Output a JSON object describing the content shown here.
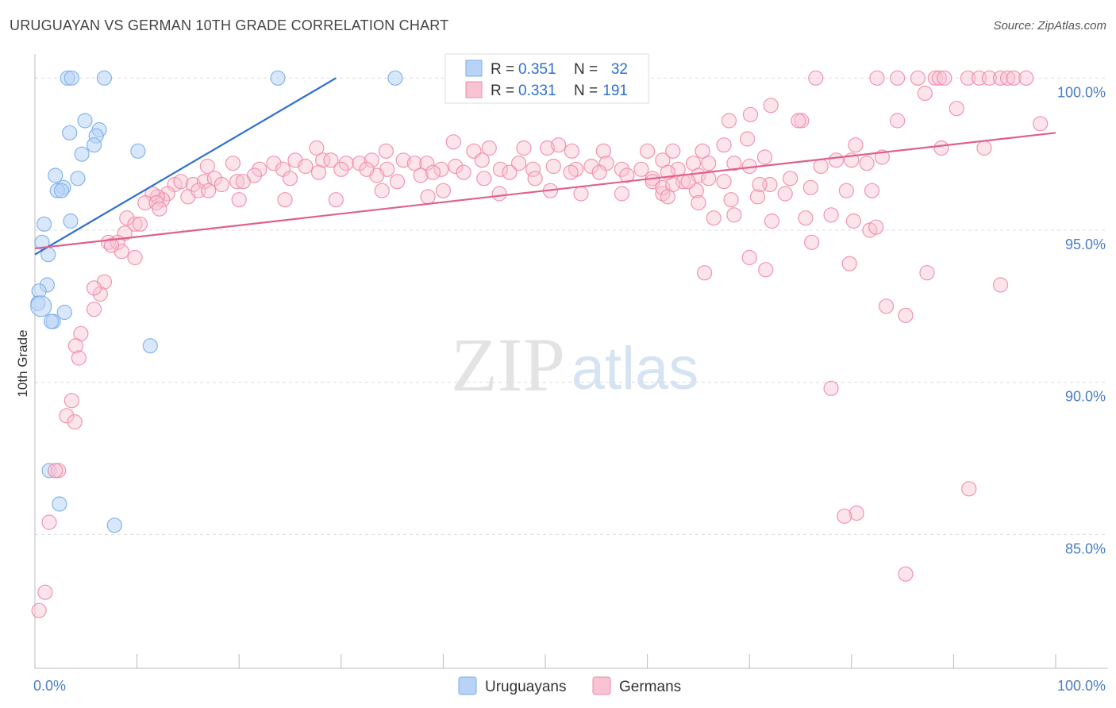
{
  "title": "URUGUAYAN VS GERMAN 10TH GRADE CORRELATION CHART",
  "source": "Source: ZipAtlas.com",
  "watermark": {
    "zip": "ZIP",
    "atlas": "atlas"
  },
  "chart_data": {
    "type": "scatter",
    "xlabel": "",
    "ylabel": "10th Grade",
    "xlim": [
      0,
      100
    ],
    "ylim": [
      80.6,
      101.0
    ],
    "x_tick_labels": [
      {
        "value": 0,
        "label": "0.0%"
      },
      {
        "value": 100,
        "label": "100.0%"
      }
    ],
    "y_ticks": [
      {
        "value": 100,
        "label": "100.0%"
      },
      {
        "value": 95,
        "label": "95.0%"
      },
      {
        "value": 90,
        "label": "90.0%"
      },
      {
        "value": 85,
        "label": "85.0%"
      }
    ],
    "grid": "horizontal dashed",
    "legend": {
      "placement": "top-center",
      "rows": [
        {
          "r_label": "R = ",
          "r_value": "0.351",
          "n_label": "N = ",
          "n_value": "32"
        },
        {
          "r_label": "R = ",
          "r_value": "0.331",
          "n_label": "N = ",
          "n_value": "191"
        }
      ]
    },
    "series": [
      {
        "name": "Uruguayans",
        "color": "#7aaee8",
        "fill": "#b8d3f5",
        "trendline": {
          "x": [
            0,
            29.5
          ],
          "y": [
            94.2,
            100.0
          ],
          "color": "#2f6fd1"
        },
        "points": [
          [
            3.2,
            100
          ],
          [
            3.6,
            100
          ],
          [
            6.8,
            100
          ],
          [
            23.8,
            100
          ],
          [
            35.3,
            100
          ],
          [
            4.9,
            98.6
          ],
          [
            6.3,
            98.3
          ],
          [
            6.0,
            98.1
          ],
          [
            3.4,
            98.2
          ],
          [
            5.8,
            97.8
          ],
          [
            4.6,
            97.5
          ],
          [
            10.1,
            97.6
          ],
          [
            2.0,
            96.8
          ],
          [
            4.2,
            96.7
          ],
          [
            2.8,
            96.4
          ],
          [
            2.2,
            96.3
          ],
          [
            2.6,
            96.3
          ],
          [
            3.5,
            95.3
          ],
          [
            0.9,
            95.2
          ],
          [
            0.7,
            94.6
          ],
          [
            1.3,
            94.2
          ],
          [
            1.2,
            93.2
          ],
          [
            0.4,
            93.0
          ],
          [
            0.3,
            92.6
          ],
          [
            0.6,
            92.5
          ],
          [
            2.9,
            92.3
          ],
          [
            1.8,
            92.0
          ],
          [
            1.6,
            92.0
          ],
          [
            11.3,
            91.2
          ],
          [
            1.4,
            87.1
          ],
          [
            2.4,
            86.0
          ],
          [
            7.8,
            85.3
          ]
        ]
      },
      {
        "name": "Germans",
        "color": "#f08aa8",
        "fill": "#f8c3d3",
        "trendline": {
          "x": [
            0,
            100
          ],
          "y": [
            94.4,
            98.2
          ],
          "color": "#e0608a"
        },
        "points": [
          [
            76.5,
            100
          ],
          [
            82.5,
            100
          ],
          [
            84.5,
            100
          ],
          [
            86.5,
            100
          ],
          [
            88.2,
            100
          ],
          [
            88.6,
            100
          ],
          [
            89.1,
            100
          ],
          [
            91.4,
            100
          ],
          [
            92.5,
            100
          ],
          [
            93.5,
            100
          ],
          [
            94.6,
            100
          ],
          [
            95.3,
            100
          ],
          [
            95.9,
            100
          ],
          [
            97.1,
            100
          ],
          [
            87.2,
            99.5
          ],
          [
            72.1,
            99.1
          ],
          [
            75.1,
            98.6
          ],
          [
            74.8,
            98.6
          ],
          [
            70.1,
            98.8
          ],
          [
            90.3,
            99.0
          ],
          [
            68.0,
            98.6
          ],
          [
            84.5,
            98.6
          ],
          [
            98.5,
            98.5
          ],
          [
            69.8,
            98.0
          ],
          [
            67.5,
            97.8
          ],
          [
            80.4,
            97.8
          ],
          [
            88.8,
            97.7
          ],
          [
            93.0,
            97.7
          ],
          [
            41.0,
            97.9
          ],
          [
            44.5,
            97.7
          ],
          [
            47.9,
            97.7
          ],
          [
            50.2,
            97.7
          ],
          [
            51.3,
            97.8
          ],
          [
            55.7,
            97.6
          ],
          [
            60.0,
            97.6
          ],
          [
            62.5,
            97.6
          ],
          [
            65.4,
            97.6
          ],
          [
            52.6,
            97.6
          ],
          [
            43.0,
            97.6
          ],
          [
            34.4,
            97.6
          ],
          [
            27.6,
            97.7
          ],
          [
            16.9,
            97.1
          ],
          [
            19.4,
            97.2
          ],
          [
            22.0,
            97.0
          ],
          [
            23.4,
            97.2
          ],
          [
            24.3,
            97.0
          ],
          [
            25.5,
            97.3
          ],
          [
            26.5,
            97.1
          ],
          [
            28.2,
            97.3
          ],
          [
            30.5,
            97.2
          ],
          [
            31.8,
            97.2
          ],
          [
            33.0,
            97.3
          ],
          [
            34.5,
            97.0
          ],
          [
            36.1,
            97.3
          ],
          [
            37.2,
            97.2
          ],
          [
            38.4,
            97.2
          ],
          [
            39.8,
            97.0
          ],
          [
            41.2,
            97.1
          ],
          [
            43.8,
            97.3
          ],
          [
            45.6,
            97.0
          ],
          [
            47.4,
            97.2
          ],
          [
            48.8,
            97.0
          ],
          [
            50.8,
            97.1
          ],
          [
            53.0,
            97.0
          ],
          [
            54.5,
            97.1
          ],
          [
            56.0,
            97.2
          ],
          [
            57.5,
            97.0
          ],
          [
            59.4,
            97.0
          ],
          [
            61.5,
            97.3
          ],
          [
            63.0,
            97.0
          ],
          [
            64.5,
            97.2
          ],
          [
            66.0,
            97.2
          ],
          [
            68.5,
            97.2
          ],
          [
            71.5,
            97.4
          ],
          [
            78.5,
            97.3
          ],
          [
            81.5,
            97.2
          ],
          [
            29.0,
            97.3
          ],
          [
            33.5,
            96.8
          ],
          [
            21.5,
            96.8
          ],
          [
            25.0,
            96.7
          ],
          [
            27.8,
            96.9
          ],
          [
            30.0,
            97.0
          ],
          [
            32.5,
            97.0
          ],
          [
            35.5,
            96.6
          ],
          [
            37.8,
            96.8
          ],
          [
            39.0,
            96.9
          ],
          [
            42.0,
            96.9
          ],
          [
            44.0,
            96.7
          ],
          [
            46.5,
            96.9
          ],
          [
            49.0,
            96.7
          ],
          [
            52.5,
            96.9
          ],
          [
            55.3,
            96.9
          ],
          [
            58.0,
            96.8
          ],
          [
            60.5,
            96.7
          ],
          [
            62.0,
            96.9
          ],
          [
            63.5,
            96.6
          ],
          [
            65.0,
            96.8
          ],
          [
            13.7,
            96.5
          ],
          [
            14.3,
            96.6
          ],
          [
            15.5,
            96.5
          ],
          [
            16.6,
            96.6
          ],
          [
            17.6,
            96.7
          ],
          [
            18.3,
            96.5
          ],
          [
            19.8,
            96.6
          ],
          [
            20.4,
            96.6
          ],
          [
            15.0,
            96.1
          ],
          [
            16.0,
            96.3
          ],
          [
            13.0,
            96.2
          ],
          [
            12.5,
            96.0
          ],
          [
            12.0,
            96.1
          ],
          [
            11.5,
            96.2
          ],
          [
            10.8,
            95.9
          ],
          [
            11.9,
            95.9
          ],
          [
            12.2,
            95.7
          ],
          [
            9.0,
            95.4
          ],
          [
            9.8,
            95.2
          ],
          [
            10.3,
            95.2
          ],
          [
            8.8,
            94.9
          ],
          [
            7.2,
            94.6
          ],
          [
            8.1,
            94.6
          ],
          [
            8.5,
            94.3
          ],
          [
            7.5,
            94.5
          ],
          [
            9.8,
            94.1
          ],
          [
            17.0,
            96.3
          ],
          [
            20.0,
            96.0
          ],
          [
            24.5,
            96.0
          ],
          [
            29.5,
            96.0
          ],
          [
            34.0,
            96.3
          ],
          [
            38.5,
            96.1
          ],
          [
            40.0,
            96.3
          ],
          [
            45.5,
            96.2
          ],
          [
            50.5,
            96.3
          ],
          [
            53.5,
            96.2
          ],
          [
            57.5,
            96.2
          ],
          [
            61.5,
            96.2
          ],
          [
            64.8,
            96.3
          ],
          [
            68.2,
            96.0
          ],
          [
            70.8,
            96.1
          ],
          [
            73.5,
            96.2
          ],
          [
            76.0,
            96.4
          ],
          [
            79.5,
            96.3
          ],
          [
            82.0,
            96.3
          ],
          [
            70.0,
            97.1
          ],
          [
            72.0,
            96.5
          ],
          [
            74.0,
            96.7
          ],
          [
            77.0,
            97.1
          ],
          [
            80.0,
            97.3
          ],
          [
            83.0,
            97.4
          ],
          [
            60.5,
            96.6
          ],
          [
            61.5,
            96.4
          ],
          [
            62.5,
            96.5
          ],
          [
            64.0,
            96.6
          ],
          [
            66.0,
            96.7
          ],
          [
            67.5,
            96.6
          ],
          [
            71.0,
            96.5
          ],
          [
            62.0,
            96.1
          ],
          [
            65.0,
            95.9
          ],
          [
            66.5,
            95.4
          ],
          [
            68.5,
            95.5
          ],
          [
            75.5,
            95.4
          ],
          [
            78.0,
            95.5
          ],
          [
            80.2,
            95.3
          ],
          [
            81.8,
            95.0
          ],
          [
            82.4,
            95.1
          ],
          [
            72.2,
            95.3
          ],
          [
            70.0,
            94.1
          ],
          [
            71.6,
            93.7
          ],
          [
            65.6,
            93.6
          ],
          [
            76.1,
            94.6
          ],
          [
            79.8,
            93.9
          ],
          [
            87.4,
            93.6
          ],
          [
            94.6,
            93.2
          ],
          [
            83.4,
            92.5
          ],
          [
            85.3,
            92.2
          ],
          [
            78.0,
            89.8
          ],
          [
            6.8,
            93.3
          ],
          [
            6.4,
            92.9
          ],
          [
            5.8,
            93.1
          ],
          [
            5.8,
            92.4
          ],
          [
            4.5,
            91.6
          ],
          [
            4.0,
            91.2
          ],
          [
            4.3,
            90.8
          ],
          [
            3.6,
            89.4
          ],
          [
            3.1,
            88.9
          ],
          [
            3.9,
            88.7
          ],
          [
            2.3,
            87.1
          ],
          [
            2.0,
            87.1
          ],
          [
            1.4,
            85.4
          ],
          [
            91.5,
            86.5
          ],
          [
            80.5,
            85.7
          ],
          [
            79.3,
            85.6
          ],
          [
            85.3,
            83.7
          ],
          [
            1.0,
            83.1
          ],
          [
            0.4,
            82.5
          ]
        ]
      }
    ]
  },
  "bottom_legend": [
    {
      "label": "Uruguayans"
    },
    {
      "label": "Germans"
    }
  ]
}
